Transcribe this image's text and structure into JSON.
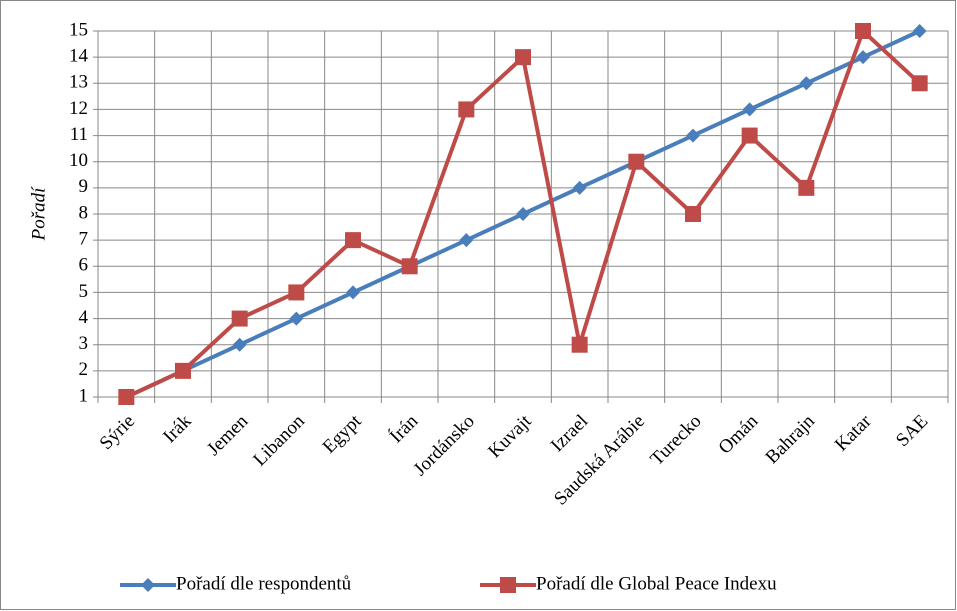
{
  "chart_data": {
    "type": "line",
    "ylabel": "Pořadí",
    "categories": [
      "Sýrie",
      "Irák",
      "Jemen",
      "Libanon",
      "Egypt",
      "Írán",
      "Jordánsko",
      "Kuvajt",
      "Izrael",
      "Saudská Arábie",
      "Turecko",
      "Omán",
      "Bahrajn",
      "Katar",
      "SAE"
    ],
    "series": [
      {
        "name": "Pořadí dle respondentů",
        "color": "#4a7ebb",
        "marker": "diamond",
        "values": [
          1,
          2,
          3,
          4,
          5,
          6,
          7,
          8,
          9,
          10,
          11,
          12,
          13,
          14,
          15
        ]
      },
      {
        "name": "Pořadí dle Global Peace Indexu",
        "color": "#be4b48",
        "marker": "square",
        "values": [
          1,
          2,
          4,
          5,
          7,
          6,
          12,
          14,
          3,
          10,
          8,
          11,
          9,
          15,
          13
        ]
      }
    ],
    "ylim": [
      1,
      15
    ],
    "yticks": [
      1,
      2,
      3,
      4,
      5,
      6,
      7,
      8,
      9,
      10,
      11,
      12,
      13,
      14,
      15
    ],
    "grid": true,
    "legend": "bottom"
  }
}
